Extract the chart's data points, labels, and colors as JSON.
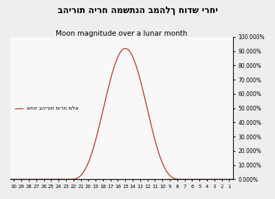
{
  "title_hebrew": "בהירות הירח המשתנה במהלך חודש ירחי",
  "title_english": "Moon magnitude over a lunar month",
  "legend_label": "אחוז בהירות מירח מלא",
  "peak_day": 15,
  "line_color": "#c0392b",
  "background_color": "#eeeeee",
  "plot_bg_color": "#f8f8f8",
  "ylabel_right_ticks": [
    0.0,
    10.0,
    20.0,
    30.0,
    40.0,
    50.0,
    60.0,
    70.0,
    80.0,
    90.0,
    100.0
  ],
  "grid_color": "#cccccc",
  "peak_value": 0.92
}
